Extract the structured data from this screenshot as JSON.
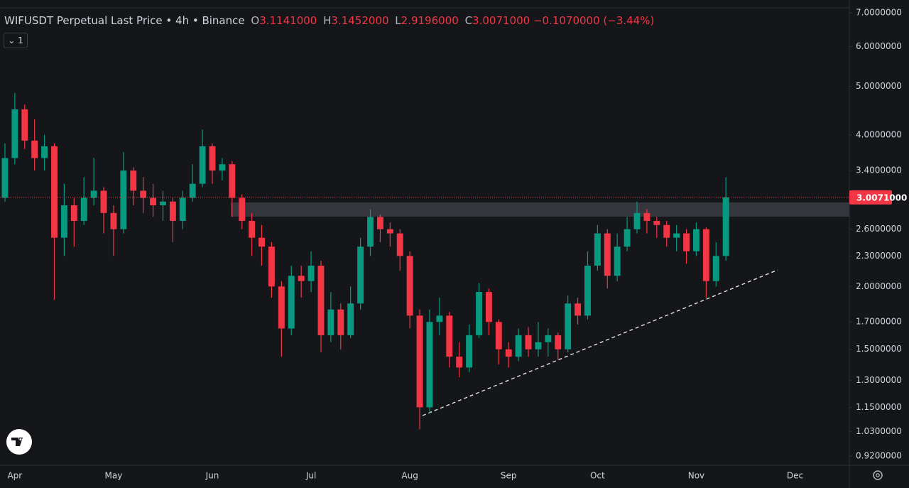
{
  "chart_data": {
    "type": "candlestick",
    "title": "WIFUSDT Perpetual Last Price • 4h • Binance",
    "ohlc": [
      {
        "key": "O",
        "value": "3.1141000"
      },
      {
        "key": "H",
        "value": "3.1452000"
      },
      {
        "key": "L",
        "value": "2.9196000"
      },
      {
        "key": "C",
        "value": "3.0071000"
      }
    ],
    "change": "−0.1070000 (−3.44%)",
    "interval_button": "1",
    "categories": [
      null,
      "Apr",
      null,
      null,
      null,
      null,
      null,
      null,
      null,
      null,
      null,
      "May",
      null,
      null,
      null,
      null,
      null,
      null,
      null,
      null,
      null,
      "Jun",
      null,
      null,
      null,
      null,
      null,
      null,
      null,
      null,
      null,
      "Jul",
      null,
      null,
      null,
      null,
      null,
      null,
      null,
      null,
      null,
      "Aug",
      null,
      null,
      null,
      null,
      null,
      null,
      null,
      null,
      null,
      "Sep",
      null,
      null,
      null,
      null,
      null,
      null,
      null,
      null,
      "Oct",
      null,
      null,
      null,
      null,
      null,
      null,
      null,
      null,
      null,
      "Nov",
      null,
      null,
      null,
      null,
      null,
      null,
      null,
      null,
      null,
      "Dec",
      null,
      null,
      null,
      null,
      null
    ],
    "open": [
      3.0,
      3.6,
      4.5,
      3.9,
      3.6,
      3.8,
      2.5,
      2.9,
      2.7,
      3.0,
      3.1,
      2.8,
      2.6,
      3.4,
      3.1,
      3.0,
      2.9,
      2.95,
      2.7,
      3.0,
      3.2,
      3.8,
      3.4,
      3.5,
      3.0,
      2.7,
      2.5,
      2.4,
      2.0,
      1.65,
      2.1,
      2.05,
      2.2,
      1.6,
      1.8,
      1.6,
      1.85,
      2.4,
      2.75,
      2.6,
      2.55,
      2.3,
      1.75,
      1.15,
      1.7,
      1.75,
      1.45,
      1.38,
      1.6,
      1.95,
      1.7,
      1.5,
      1.45,
      1.6,
      1.5,
      1.55,
      1.6,
      1.5,
      1.85,
      1.75,
      2.2,
      2.55,
      2.1,
      2.4,
      2.6,
      2.8,
      2.7,
      2.65,
      2.5,
      2.55,
      2.35,
      2.6,
      2.05,
      2.3,
      null,
      null,
      null,
      null,
      null,
      null,
      null,
      null,
      null,
      null,
      null,
      null
    ],
    "high": [
      3.85,
      4.85,
      4.6,
      4.3,
      4.0,
      3.85,
      3.2,
      3.0,
      3.3,
      3.6,
      3.15,
      2.9,
      3.7,
      3.45,
      3.3,
      3.2,
      3.1,
      3.0,
      3.1,
      3.5,
      4.1,
      3.85,
      3.6,
      3.55,
      3.05,
      2.8,
      2.65,
      2.45,
      2.05,
      2.2,
      2.2,
      2.35,
      2.25,
      1.95,
      1.85,
      2.0,
      2.5,
      2.85,
      2.78,
      2.68,
      2.6,
      2.35,
      1.8,
      1.8,
      1.9,
      1.78,
      1.55,
      1.68,
      2.03,
      1.98,
      1.72,
      1.55,
      1.65,
      1.66,
      1.7,
      1.65,
      1.62,
      1.92,
      1.9,
      2.35,
      2.65,
      2.6,
      2.55,
      2.75,
      2.95,
      2.85,
      2.75,
      2.7,
      2.65,
      2.6,
      2.68,
      2.62,
      2.45,
      3.3,
      null,
      null,
      null,
      null,
      null,
      null,
      null,
      null,
      null,
      null,
      null,
      null
    ],
    "low": [
      2.95,
      3.5,
      3.75,
      3.4,
      3.4,
      1.88,
      2.3,
      2.4,
      2.65,
      2.9,
      2.55,
      2.3,
      2.55,
      2.9,
      2.8,
      2.75,
      2.7,
      2.45,
      2.6,
      2.95,
      3.15,
      3.2,
      3.25,
      2.75,
      2.6,
      2.3,
      2.2,
      1.9,
      1.45,
      1.6,
      1.9,
      1.95,
      1.48,
      1.55,
      1.5,
      1.58,
      1.8,
      2.3,
      2.45,
      2.4,
      2.15,
      1.65,
      1.04,
      1.12,
      1.6,
      1.38,
      1.32,
      1.35,
      1.58,
      1.6,
      1.4,
      1.38,
      1.42,
      1.45,
      1.45,
      1.45,
      1.43,
      1.48,
      1.68,
      1.72,
      2.15,
      1.98,
      2.05,
      2.35,
      2.55,
      2.55,
      2.5,
      2.4,
      2.35,
      2.22,
      2.3,
      1.9,
      2.0,
      2.25,
      null,
      null,
      null,
      null,
      null,
      null,
      null,
      null,
      null,
      null,
      null,
      null
    ],
    "close": [
      3.6,
      4.5,
      3.9,
      3.6,
      3.8,
      2.5,
      2.9,
      2.7,
      3.0,
      3.1,
      2.8,
      2.6,
      3.4,
      3.1,
      3.0,
      2.9,
      2.95,
      2.7,
      3.0,
      3.2,
      3.8,
      3.4,
      3.5,
      3.0,
      2.7,
      2.5,
      2.4,
      2.0,
      1.65,
      2.1,
      2.05,
      2.2,
      1.6,
      1.8,
      1.6,
      1.85,
      2.4,
      2.75,
      2.6,
      2.55,
      2.3,
      1.75,
      1.15,
      1.7,
      1.75,
      1.45,
      1.38,
      1.6,
      1.95,
      1.7,
      1.5,
      1.45,
      1.6,
      1.5,
      1.55,
      1.6,
      1.5,
      1.85,
      1.75,
      2.2,
      2.55,
      2.1,
      2.4,
      2.6,
      2.8,
      2.7,
      2.65,
      2.5,
      2.55,
      2.35,
      2.6,
      2.05,
      2.3,
      3.0071,
      null,
      null,
      null,
      null,
      null,
      null,
      null,
      null,
      null,
      null,
      null,
      null
    ],
    "up_color": "#089981",
    "down_color": "#f23645",
    "log_scale": true,
    "ylim": [
      0.882,
      7.14
    ],
    "yticks": [
      {
        "value": 7.0,
        "label": "7.0000000"
      },
      {
        "value": 6.0,
        "label": "6.0000000"
      },
      {
        "value": 5.0,
        "label": "5.0000000"
      },
      {
        "value": 4.0,
        "label": "4.0000000"
      },
      {
        "value": 3.4,
        "label": "3.4000000"
      },
      {
        "value": 2.6,
        "label": "2.6000000"
      },
      {
        "value": 2.3,
        "label": "2.3000000"
      },
      {
        "value": 2.0,
        "label": "2.0000000"
      },
      {
        "value": 1.7,
        "label": "1.7000000"
      },
      {
        "value": 1.5,
        "label": "1.5000000"
      },
      {
        "value": 1.3,
        "label": "1.3000000"
      },
      {
        "value": 1.15,
        "label": "1.1500000"
      },
      {
        "value": 1.03,
        "label": "1.0300000"
      },
      {
        "value": 0.92,
        "label": "0.9200000"
      }
    ],
    "last_price": {
      "value": 3.0071,
      "label": "3.0071000"
    }
  }
}
